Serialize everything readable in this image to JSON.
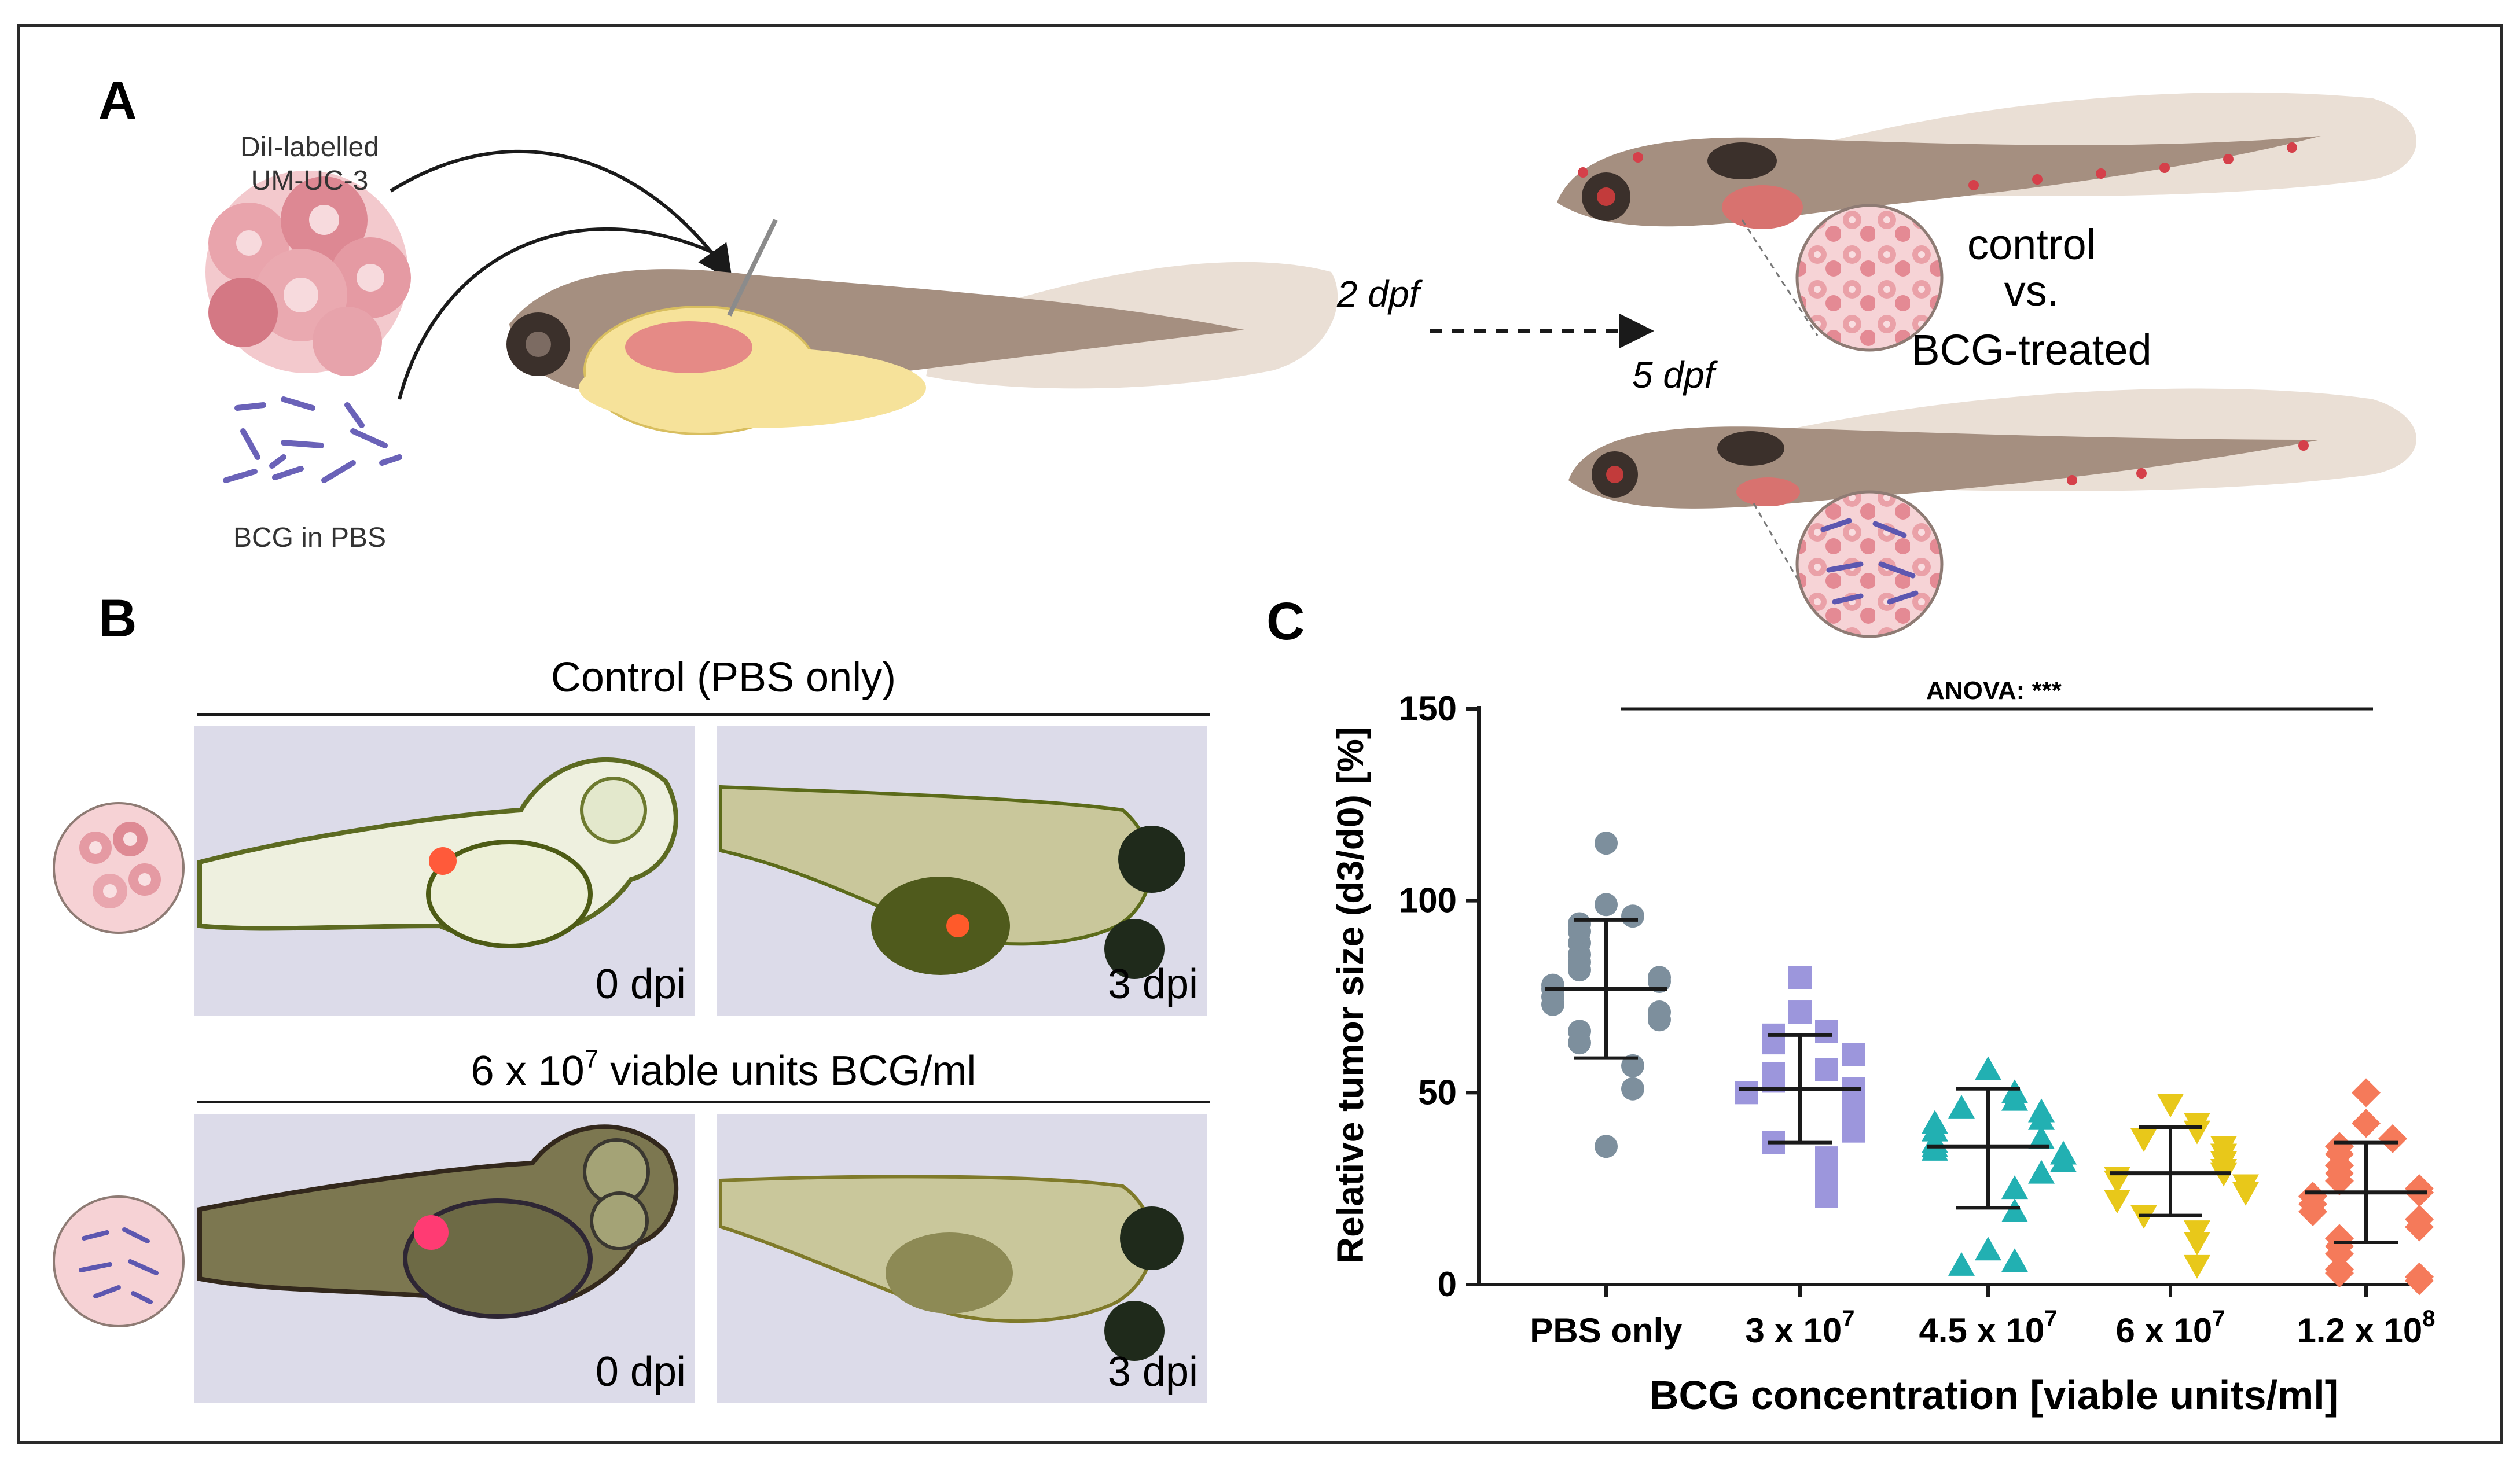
{
  "panel_a": {
    "label": "A",
    "cell_label_line1": "DiI-labelled",
    "cell_label_line2": "UM-UC-3",
    "bcg_label": "BCG in PBS",
    "time_injection": "2 dpf",
    "time_endpoint": "5 dpf",
    "compare_line1": "control",
    "compare_line2": "vs.",
    "compare_line3": "BCG-treated"
  },
  "panel_b": {
    "label": "B",
    "row1_title": "Control (PBS only)",
    "row2_title_prefix": "6 x 10",
    "row2_title_exp": "7",
    "row2_title_suffix": " viable units BCG/ml",
    "day0": "0 dpi",
    "day3": "3 dpi"
  },
  "panel_c": {
    "label": "C",
    "anova": "ANOVA: ***"
  },
  "chart_data": {
    "type": "scatter",
    "title": "",
    "ylabel": "Relative tumor size (d3/d0) [%]",
    "xlabel": "BCG concentration [viable units/ml]",
    "ylim": [
      0,
      150
    ],
    "yticks": [
      0,
      50,
      100,
      150
    ],
    "categories": [
      {
        "base": "PBS only",
        "exp": ""
      },
      {
        "base": "3 x 10",
        "exp": "7"
      },
      {
        "base": "4.5 x 10",
        "exp": "7"
      },
      {
        "base": "6 x 10",
        "exp": "7"
      },
      {
        "base": "1.2 x 10",
        "exp": "8"
      }
    ],
    "series": [
      {
        "name": "PBS only",
        "marker": "circle",
        "color": "#7d8f9d",
        "mean": 77,
        "sd_low": 59,
        "sd_high": 95,
        "values": [
          115,
          99,
          96,
          94,
          92,
          89,
          86,
          84,
          82,
          80,
          79,
          78,
          77,
          75,
          73,
          71,
          69,
          66,
          63,
          57,
          51,
          36
        ]
      },
      {
        "name": "3 x 10^7",
        "marker": "square",
        "color": "#9c96dc",
        "mean": 51,
        "sd_low": 37,
        "sd_high": 65,
        "values": [
          80,
          71,
          66,
          65,
          63,
          60,
          56,
          55,
          53,
          51,
          50,
          48,
          46,
          44,
          43,
          40,
          37,
          33,
          28,
          23
        ]
      },
      {
        "name": "4.5 x 10^7",
        "marker": "triangle-up",
        "color": "#22b0b2",
        "mean": 36,
        "sd_low": 20,
        "sd_high": 51,
        "values": [
          56,
          50,
          48,
          46,
          45,
          43,
          42,
          40,
          38,
          37,
          36,
          35,
          34,
          32,
          29,
          25,
          19,
          9,
          6,
          5
        ]
      },
      {
        "name": "6 x 10^7",
        "marker": "triangle-down",
        "color": "#e8c81a",
        "mean": 29,
        "sd_low": 18,
        "sd_high": 41,
        "values": [
          47,
          42,
          40,
          38,
          36,
          34,
          32,
          30,
          29,
          28,
          27,
          26,
          24,
          22,
          18,
          14,
          11,
          5
        ]
      },
      {
        "name": "1.2 x 10^8",
        "marker": "diamond",
        "color": "#f57a5a",
        "mean": 24,
        "sd_low": 11,
        "sd_high": 37,
        "values": [
          50,
          42,
          38,
          36,
          34,
          31,
          29,
          27,
          25,
          24,
          23,
          21,
          19,
          17,
          15,
          12,
          10,
          8,
          4,
          3,
          2,
          1
        ]
      }
    ]
  }
}
